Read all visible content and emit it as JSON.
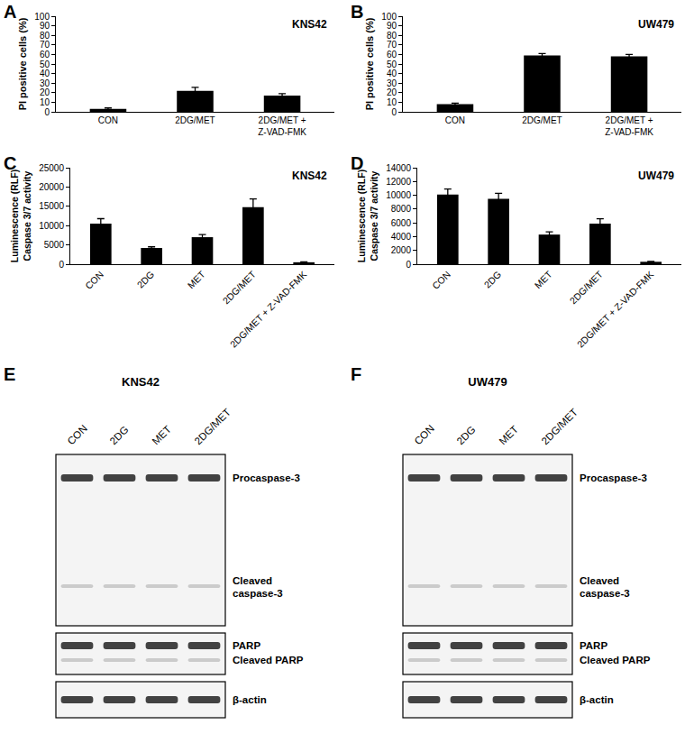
{
  "chart_data": [
    {
      "panel": "A",
      "type": "bar",
      "title": "KNS42",
      "y_label": "PI positive cells (%)",
      "categories": [
        "CON",
        "2DG/MET",
        "2DG/MET +\nZ-VAD-FMK"
      ],
      "values": [
        3,
        22,
        17
      ],
      "errors": [
        1,
        3.5,
        2
      ],
      "color": "#000000",
      "ylim": [
        0,
        100
      ],
      "yticks": [
        0,
        10,
        20,
        30,
        40,
        50,
        60,
        70,
        80,
        90,
        100
      ],
      "grid": false
    },
    {
      "panel": "B",
      "type": "bar",
      "title": "UW479",
      "y_label": "PI positive cells (%)",
      "categories": [
        "CON",
        "2DG/MET",
        "2DG/MET +\nZ-VAD-FMK"
      ],
      "values": [
        8,
        59,
        58
      ],
      "errors": [
        1,
        2,
        2
      ],
      "color": "#000000",
      "ylim": [
        0,
        100
      ],
      "yticks": [
        0,
        10,
        20,
        30,
        40,
        50,
        60,
        70,
        80,
        90,
        100
      ],
      "grid": false
    },
    {
      "panel": "C",
      "type": "bar",
      "title": "KNS42",
      "y_label": "Luminescence (RLF)\nCaspase 3/7 activity",
      "categories": [
        "CON",
        "2DG",
        "MET",
        "2DG/MET",
        "2DG/MET + Z-VAD-FMK"
      ],
      "values": [
        10500,
        4200,
        7000,
        14800,
        500
      ],
      "errors": [
        1300,
        300,
        700,
        2100,
        100
      ],
      "color": "#000000",
      "ylim": [
        0,
        25000
      ],
      "yticks": [
        0,
        5000,
        10000,
        15000,
        20000,
        25000
      ],
      "grid": false
    },
    {
      "panel": "D",
      "type": "bar",
      "title": "UW479",
      "y_label": "Luminescence (RLF)\nCaspase 3/7 activity",
      "categories": [
        "CON",
        "2DG",
        "MET",
        "2DG/MET",
        "2DG/MET + Z-VAD-FMK"
      ],
      "values": [
        10100,
        9500,
        4300,
        5900,
        350
      ],
      "errors": [
        800,
        800,
        400,
        700,
        50
      ],
      "color": "#000000",
      "ylim": [
        0,
        14000
      ],
      "yticks": [
        0,
        2000,
        4000,
        6000,
        8000,
        10000,
        12000,
        14000
      ],
      "grid": false
    }
  ],
  "blots": [
    {
      "panel": "E",
      "title": "KNS42",
      "lanes": [
        "CON",
        "2DG",
        "MET",
        "2DG/MET"
      ],
      "sections": [
        {
          "labels": [
            "Procaspase-3",
            "Cleaved\ncaspase-3"
          ]
        },
        {
          "labels": [
            "PARP",
            "Cleaved PARP"
          ]
        },
        {
          "labels": [
            "β-actin"
          ]
        }
      ]
    },
    {
      "panel": "F",
      "title": "UW479",
      "lanes": [
        "CON",
        "2DG",
        "MET",
        "2DG/MET"
      ],
      "sections": [
        {
          "labels": [
            "Procaspase-3",
            "Cleaved\ncaspase-3"
          ]
        },
        {
          "labels": [
            "PARP",
            "Cleaved PARP"
          ]
        },
        {
          "labels": [
            "β-actin"
          ]
        }
      ]
    }
  ]
}
